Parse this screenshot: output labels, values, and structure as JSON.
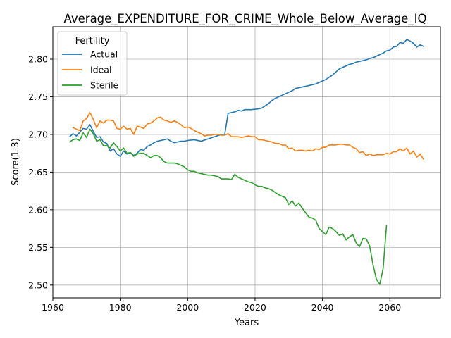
{
  "chart_data": {
    "type": "line",
    "title": "Average_EXPENDITURE_FOR_CRIME_Whole_Below_Average_IQ",
    "xlabel": "Years",
    "ylabel": "Score(1-3)",
    "xlim": [
      1960,
      2075
    ],
    "ylim": [
      2.483,
      2.843
    ],
    "xticks": [
      1960,
      1980,
      2000,
      2020,
      2040,
      2060
    ],
    "xtick_labels": [
      "1960",
      "1980",
      "2000",
      "2020",
      "2040",
      "2060"
    ],
    "yticks": [
      2.5,
      2.55,
      2.6,
      2.65,
      2.7,
      2.75,
      2.8
    ],
    "ytick_labels": [
      "2.50",
      "2.55",
      "2.60",
      "2.65",
      "2.70",
      "2.75",
      "2.80"
    ],
    "grid": true,
    "legend": {
      "title": "Fertility",
      "placement": "top-left"
    },
    "series": [
      {
        "name": "Actual",
        "color": "#1f77b4",
        "points": [
          [
            1965,
            2.697
          ],
          [
            1966,
            2.701
          ],
          [
            1967,
            2.698
          ],
          [
            1968,
            2.703
          ],
          [
            1969,
            2.708
          ],
          [
            1970,
            2.707
          ],
          [
            1971,
            2.713
          ],
          [
            1972,
            2.704
          ],
          [
            1973,
            2.696
          ],
          [
            1974,
            2.697
          ],
          [
            1975,
            2.69
          ],
          [
            1976,
            2.688
          ],
          [
            1977,
            2.678
          ],
          [
            1978,
            2.681
          ],
          [
            1979,
            2.674
          ],
          [
            1980,
            2.671
          ],
          [
            1981,
            2.678
          ],
          [
            1982,
            2.674
          ],
          [
            1983,
            2.676
          ],
          [
            1984,
            2.672
          ],
          [
            1985,
            2.675
          ],
          [
            1986,
            2.68
          ],
          [
            1987,
            2.679
          ],
          [
            1988,
            2.684
          ],
          [
            1989,
            2.686
          ],
          [
            1990,
            2.689
          ],
          [
            1991,
            2.691
          ],
          [
            1992,
            2.692
          ],
          [
            1993,
            2.693
          ],
          [
            1994,
            2.694
          ],
          [
            1995,
            2.691
          ],
          [
            1996,
            2.689
          ],
          [
            1997,
            2.69
          ],
          [
            1998,
            2.691
          ],
          [
            1999,
            2.691
          ],
          [
            2000,
            2.692
          ],
          [
            2002,
            2.693
          ],
          [
            2004,
            2.691
          ],
          [
            2006,
            2.694
          ],
          [
            2008,
            2.697
          ],
          [
            2010,
            2.7
          ],
          [
            2011,
            2.7
          ],
          [
            2012,
            2.728
          ],
          [
            2013,
            2.729
          ],
          [
            2014,
            2.73
          ],
          [
            2015,
            2.732
          ],
          [
            2016,
            2.731
          ],
          [
            2017,
            2.733
          ],
          [
            2019,
            2.733
          ],
          [
            2021,
            2.734
          ],
          [
            2022,
            2.735
          ],
          [
            2023,
            2.738
          ],
          [
            2024,
            2.741
          ],
          [
            2025,
            2.745
          ],
          [
            2026,
            2.748
          ],
          [
            2027,
            2.75
          ],
          [
            2028,
            2.752
          ],
          [
            2029,
            2.754
          ],
          [
            2030,
            2.756
          ],
          [
            2031,
            2.758
          ],
          [
            2032,
            2.761
          ],
          [
            2033,
            2.762
          ],
          [
            2034,
            2.763
          ],
          [
            2035,
            2.764
          ],
          [
            2036,
            2.765
          ],
          [
            2037,
            2.766
          ],
          [
            2038,
            2.767
          ],
          [
            2039,
            2.769
          ],
          [
            2040,
            2.771
          ],
          [
            2041,
            2.773
          ],
          [
            2042,
            2.776
          ],
          [
            2043,
            2.779
          ],
          [
            2044,
            2.783
          ],
          [
            2045,
            2.787
          ],
          [
            2046,
            2.789
          ],
          [
            2047,
            2.791
          ],
          [
            2048,
            2.793
          ],
          [
            2049,
            2.794
          ],
          [
            2050,
            2.796
          ],
          [
            2051,
            2.797
          ],
          [
            2052,
            2.798
          ],
          [
            2053,
            2.799
          ],
          [
            2054,
            2.801
          ],
          [
            2055,
            2.802
          ],
          [
            2056,
            2.804
          ],
          [
            2057,
            2.806
          ],
          [
            2058,
            2.808
          ],
          [
            2059,
            2.811
          ],
          [
            2060,
            2.812
          ],
          [
            2061,
            2.816
          ],
          [
            2062,
            2.817
          ],
          [
            2063,
            2.822
          ],
          [
            2064,
            2.821
          ],
          [
            2065,
            2.826
          ],
          [
            2066,
            2.824
          ],
          [
            2067,
            2.821
          ],
          [
            2068,
            2.816
          ],
          [
            2069,
            2.819
          ],
          [
            2070,
            2.817
          ]
        ]
      },
      {
        "name": "Ideal",
        "color": "#ff7f0e",
        "points": [
          [
            1966,
            2.709
          ],
          [
            1967,
            2.707
          ],
          [
            1968,
            2.705
          ],
          [
            1969,
            2.718
          ],
          [
            1970,
            2.721
          ],
          [
            1971,
            2.729
          ],
          [
            1972,
            2.72
          ],
          [
            1973,
            2.709
          ],
          [
            1974,
            2.718
          ],
          [
            1975,
            2.715
          ],
          [
            1976,
            2.719
          ],
          [
            1977,
            2.719
          ],
          [
            1978,
            2.718
          ],
          [
            1979,
            2.708
          ],
          [
            1980,
            2.707
          ],
          [
            1981,
            2.711
          ],
          [
            1982,
            2.707
          ],
          [
            1983,
            2.708
          ],
          [
            1984,
            2.7
          ],
          [
            1985,
            2.711
          ],
          [
            1986,
            2.71
          ],
          [
            1987,
            2.708
          ],
          [
            1988,
            2.714
          ],
          [
            1989,
            2.715
          ],
          [
            1990,
            2.718
          ],
          [
            1991,
            2.722
          ],
          [
            1992,
            2.723
          ],
          [
            1993,
            2.719
          ],
          [
            1994,
            2.718
          ],
          [
            1995,
            2.716
          ],
          [
            1996,
            2.718
          ],
          [
            1997,
            2.716
          ],
          [
            1998,
            2.713
          ],
          [
            1999,
            2.709
          ],
          [
            2000,
            2.71
          ],
          [
            2001,
            2.708
          ],
          [
            2002,
            2.705
          ],
          [
            2003,
            2.703
          ],
          [
            2004,
            2.701
          ],
          [
            2005,
            2.698
          ],
          [
            2006,
            2.699
          ],
          [
            2007,
            2.699
          ],
          [
            2008,
            2.7
          ],
          [
            2009,
            2.7
          ],
          [
            2010,
            2.699
          ],
          [
            2011,
            2.699
          ],
          [
            2012,
            2.701
          ],
          [
            2013,
            2.697
          ],
          [
            2014,
            2.697
          ],
          [
            2015,
            2.697
          ],
          [
            2016,
            2.696
          ],
          [
            2017,
            2.697
          ],
          [
            2018,
            2.698
          ],
          [
            2019,
            2.697
          ],
          [
            2020,
            2.697
          ],
          [
            2021,
            2.693
          ],
          [
            2022,
            2.693
          ],
          [
            2023,
            2.692
          ],
          [
            2024,
            2.691
          ],
          [
            2025,
            2.69
          ],
          [
            2026,
            2.688
          ],
          [
            2027,
            2.688
          ],
          [
            2028,
            2.686
          ],
          [
            2029,
            2.686
          ],
          [
            2030,
            2.681
          ],
          [
            2031,
            2.682
          ],
          [
            2032,
            2.678
          ],
          [
            2033,
            2.679
          ],
          [
            2034,
            2.679
          ],
          [
            2035,
            2.678
          ],
          [
            2036,
            2.679
          ],
          [
            2037,
            2.678
          ],
          [
            2038,
            2.681
          ],
          [
            2039,
            2.68
          ],
          [
            2040,
            2.683
          ],
          [
            2041,
            2.683
          ],
          [
            2042,
            2.686
          ],
          [
            2043,
            2.686
          ],
          [
            2044,
            2.686
          ],
          [
            2045,
            2.687
          ],
          [
            2046,
            2.687
          ],
          [
            2047,
            2.686
          ],
          [
            2048,
            2.686
          ],
          [
            2049,
            2.683
          ],
          [
            2050,
            2.681
          ],
          [
            2051,
            2.676
          ],
          [
            2052,
            2.677
          ],
          [
            2053,
            2.672
          ],
          [
            2054,
            2.674
          ],
          [
            2055,
            2.672
          ],
          [
            2056,
            2.673
          ],
          [
            2057,
            2.673
          ],
          [
            2058,
            2.673
          ],
          [
            2059,
            2.675
          ],
          [
            2060,
            2.674
          ],
          [
            2061,
            2.677
          ],
          [
            2062,
            2.677
          ],
          [
            2063,
            2.681
          ],
          [
            2064,
            2.678
          ],
          [
            2065,
            2.682
          ],
          [
            2066,
            2.674
          ],
          [
            2067,
            2.678
          ],
          [
            2068,
            2.67
          ],
          [
            2069,
            2.674
          ],
          [
            2070,
            2.667
          ]
        ]
      },
      {
        "name": "Sterile",
        "color": "#2ca02c",
        "points": [
          [
            1965,
            2.69
          ],
          [
            1966,
            2.693
          ],
          [
            1967,
            2.694
          ],
          [
            1968,
            2.692
          ],
          [
            1969,
            2.702
          ],
          [
            1970,
            2.696
          ],
          [
            1971,
            2.707
          ],
          [
            1972,
            2.701
          ],
          [
            1973,
            2.691
          ],
          [
            1974,
            2.693
          ],
          [
            1975,
            2.685
          ],
          [
            1976,
            2.685
          ],
          [
            1977,
            2.682
          ],
          [
            1978,
            2.689
          ],
          [
            1979,
            2.684
          ],
          [
            1980,
            2.678
          ],
          [
            1981,
            2.682
          ],
          [
            1982,
            2.675
          ],
          [
            1983,
            2.676
          ],
          [
            1984,
            2.671
          ],
          [
            1985,
            2.674
          ],
          [
            1986,
            2.675
          ],
          [
            1987,
            2.675
          ],
          [
            1988,
            2.672
          ],
          [
            1989,
            2.669
          ],
          [
            1990,
            2.672
          ],
          [
            1991,
            2.672
          ],
          [
            1992,
            2.669
          ],
          [
            1993,
            2.664
          ],
          [
            1994,
            2.662
          ],
          [
            1995,
            2.662
          ],
          [
            1996,
            2.662
          ],
          [
            1997,
            2.661
          ],
          [
            1998,
            2.659
          ],
          [
            1999,
            2.657
          ],
          [
            2000,
            2.653
          ],
          [
            2001,
            2.651
          ],
          [
            2002,
            2.651
          ],
          [
            2003,
            2.649
          ],
          [
            2004,
            2.648
          ],
          [
            2005,
            2.647
          ],
          [
            2006,
            2.646
          ],
          [
            2007,
            2.646
          ],
          [
            2008,
            2.645
          ],
          [
            2009,
            2.644
          ],
          [
            2010,
            2.641
          ],
          [
            2011,
            2.641
          ],
          [
            2012,
            2.641
          ],
          [
            2013,
            2.64
          ],
          [
            2014,
            2.647
          ],
          [
            2015,
            2.643
          ],
          [
            2016,
            2.641
          ],
          [
            2017,
            2.639
          ],
          [
            2018,
            2.637
          ],
          [
            2019,
            2.636
          ],
          [
            2020,
            2.633
          ],
          [
            2021,
            2.631
          ],
          [
            2022,
            2.631
          ],
          [
            2023,
            2.629
          ],
          [
            2024,
            2.628
          ],
          [
            2025,
            2.626
          ],
          [
            2026,
            2.623
          ],
          [
            2027,
            2.62
          ],
          [
            2028,
            2.618
          ],
          [
            2029,
            2.616
          ],
          [
            2030,
            2.607
          ],
          [
            2031,
            2.612
          ],
          [
            2032,
            2.605
          ],
          [
            2033,
            2.609
          ],
          [
            2034,
            2.602
          ],
          [
            2035,
            2.596
          ],
          [
            2036,
            2.59
          ],
          [
            2037,
            2.589
          ],
          [
            2038,
            2.586
          ],
          [
            2039,
            2.575
          ],
          [
            2040,
            2.571
          ],
          [
            2041,
            2.567
          ],
          [
            2042,
            2.577
          ],
          [
            2043,
            2.575
          ],
          [
            2044,
            2.571
          ],
          [
            2045,
            2.566
          ],
          [
            2046,
            2.568
          ],
          [
            2047,
            2.56
          ],
          [
            2048,
            2.564
          ],
          [
            2049,
            2.567
          ],
          [
            2050,
            2.556
          ],
          [
            2051,
            2.551
          ],
          [
            2052,
            2.562
          ],
          [
            2053,
            2.561
          ],
          [
            2054,
            2.552
          ],
          [
            2055,
            2.527
          ],
          [
            2056,
            2.508
          ],
          [
            2057,
            2.501
          ],
          [
            2058,
            2.522
          ],
          [
            2059,
            2.579
          ]
        ]
      }
    ]
  }
}
